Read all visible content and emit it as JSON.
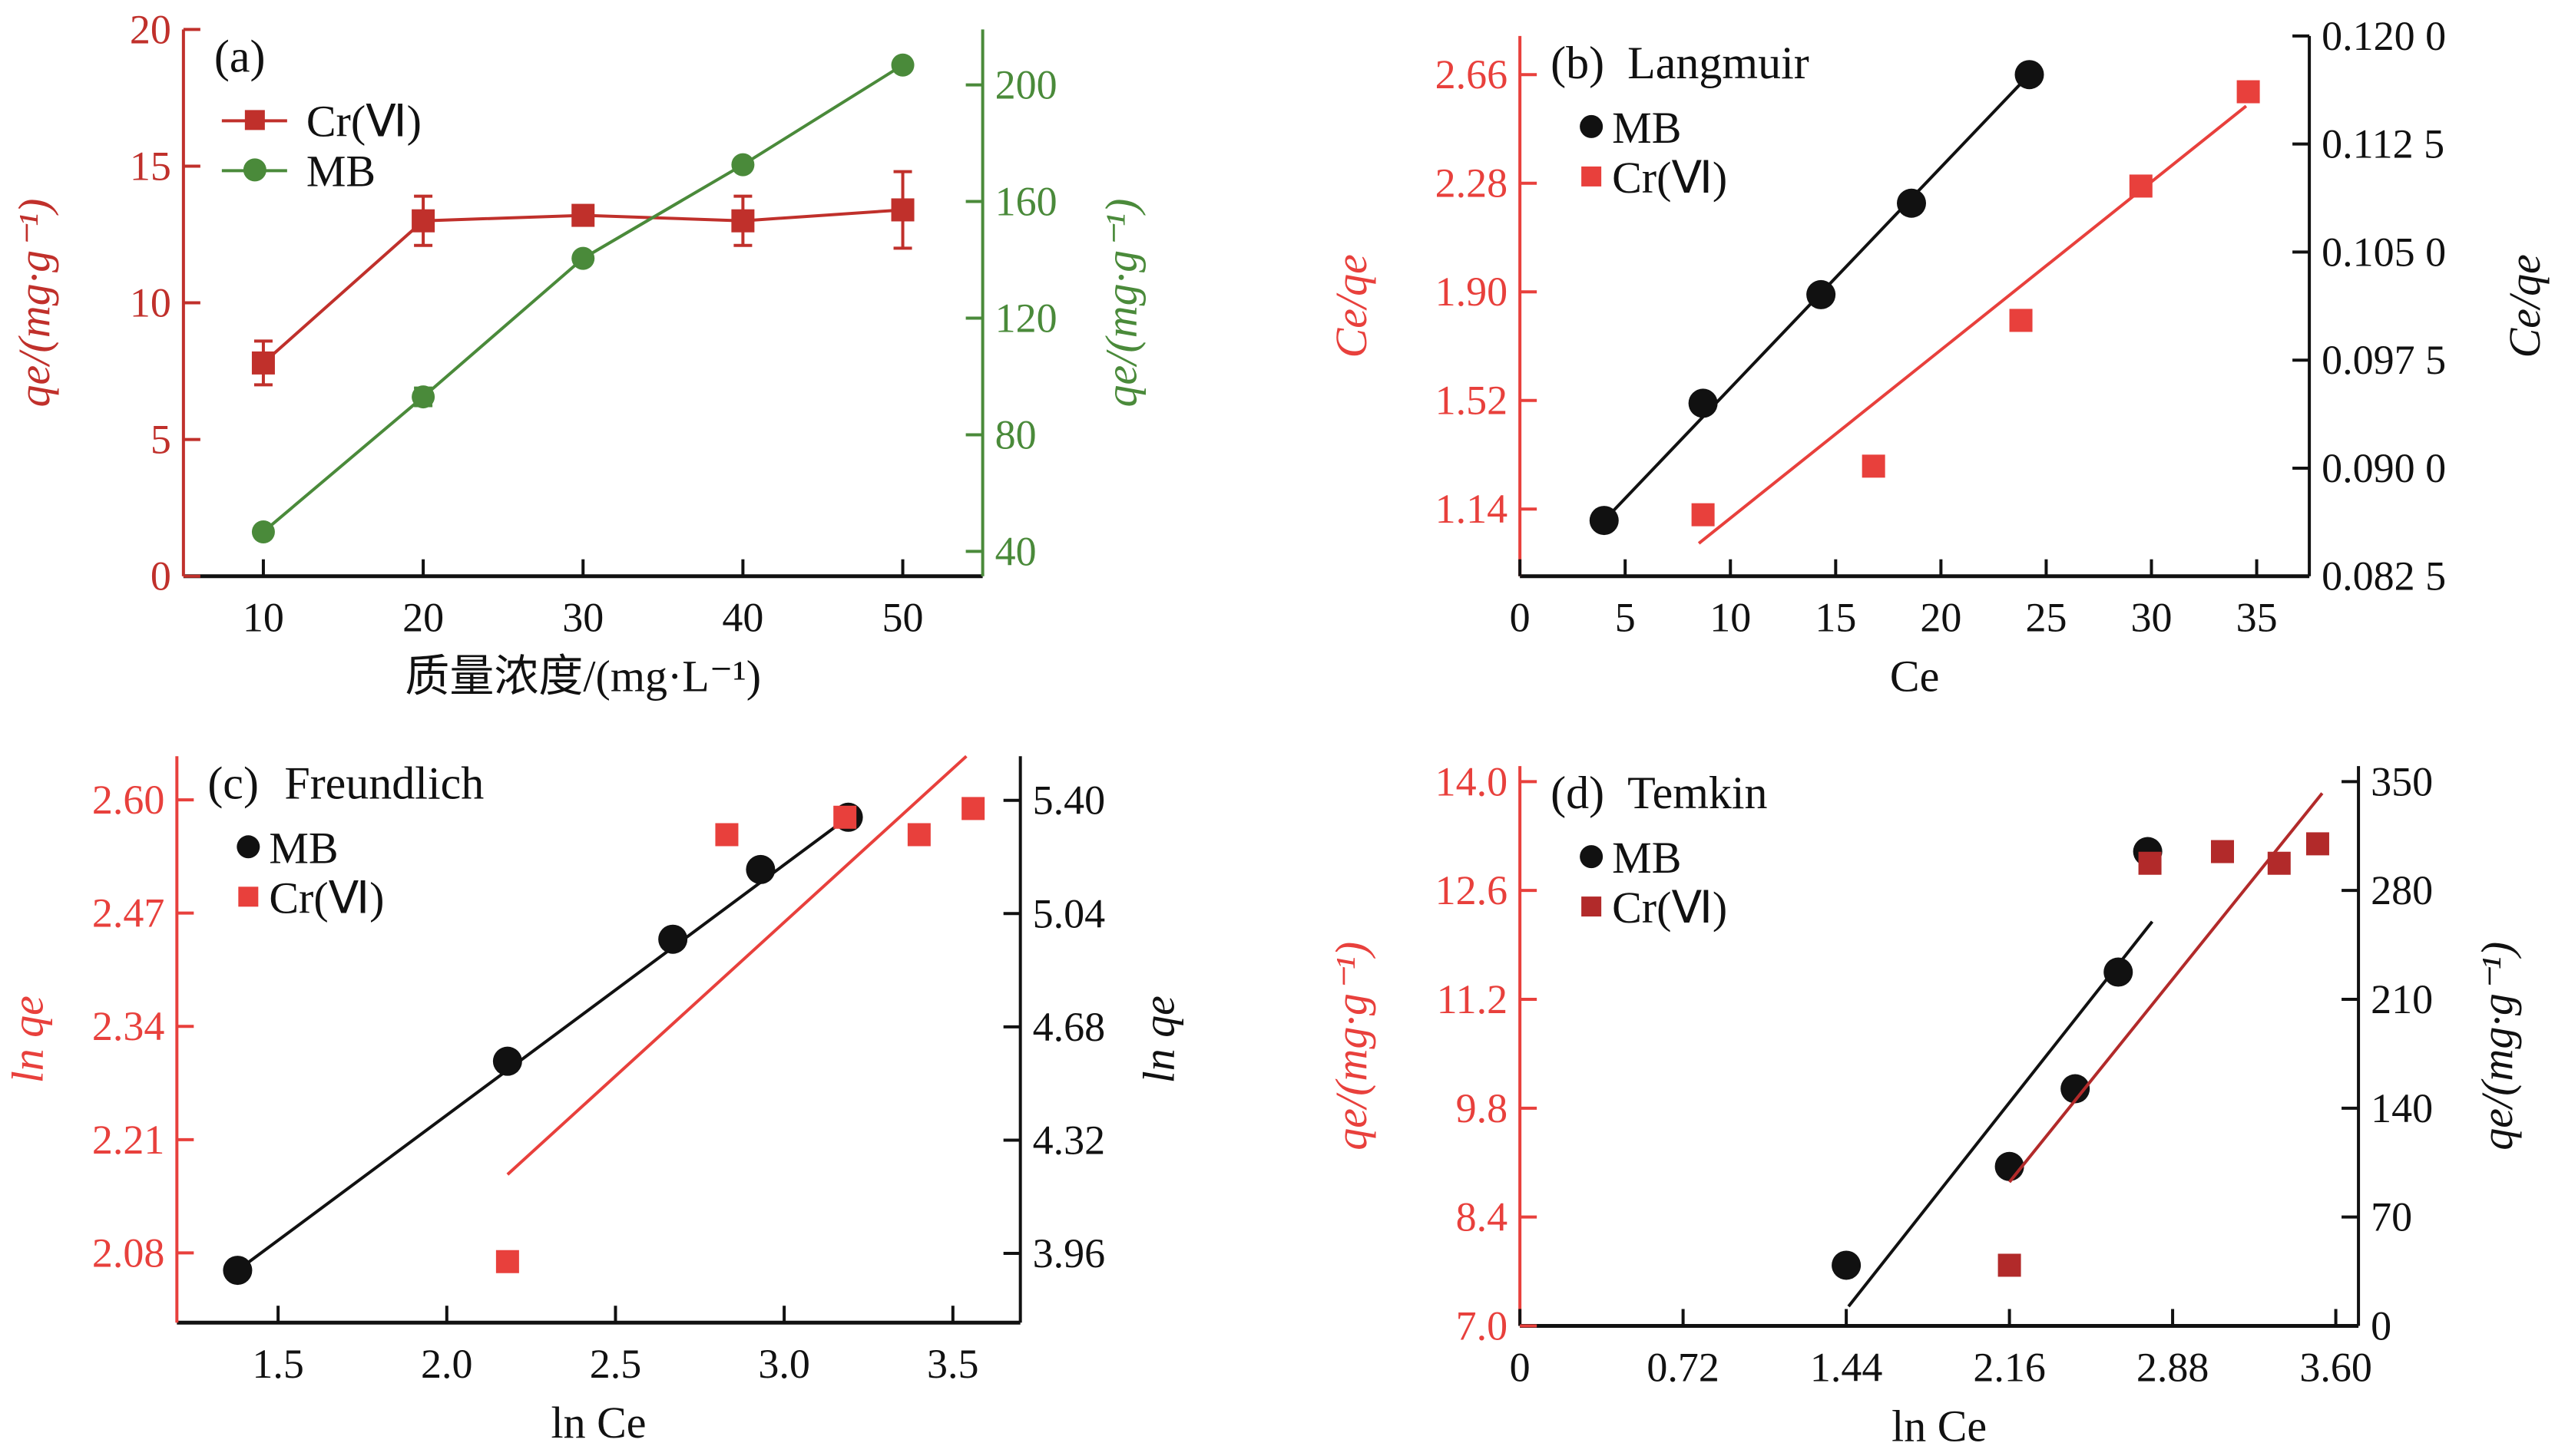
{
  "chart_data": [
    {
      "panel": "a",
      "type": "line",
      "panel_label": "(a)",
      "title": "",
      "xlabel": "质量浓度/(mg·L⁻¹)",
      "ylabel_left": "qe/(mg·g⁻¹)",
      "ylabel_right": "qe/(mg·g⁻¹)",
      "x_ticks": [
        "10",
        "20",
        "30",
        "40",
        "50"
      ],
      "xlim": [
        5,
        55
      ],
      "y_left_ticks": [
        "0",
        "5",
        "10",
        "15",
        "20"
      ],
      "ylim_left": [
        0,
        20
      ],
      "y_right_ticks": [
        "40",
        "80",
        "120",
        "160",
        "200"
      ],
      "ylim_right": [
        31.5,
        219
      ],
      "left_axis_color": "#c0302b",
      "right_axis_color": "#4a8a3a",
      "legend_position": "top-left",
      "series": [
        {
          "name": "Cr(Ⅵ)",
          "axis": "left",
          "marker": "square",
          "color": "#c0302b",
          "x": [
            10,
            20,
            30,
            40,
            50
          ],
          "y": [
            7.8,
            13.0,
            13.2,
            13.0,
            13.4
          ],
          "err": [
            0.8,
            0.9,
            0.3,
            0.9,
            1.4
          ]
        },
        {
          "name": "MB",
          "axis": "right",
          "marker": "circle",
          "color": "#4a8a3a",
          "x": [
            10,
            20,
            30,
            40,
            50
          ],
          "y": [
            46.7,
            93.0,
            140.5,
            172.6,
            206.8
          ],
          "err": [
            0,
            3,
            0,
            0,
            0
          ]
        }
      ]
    },
    {
      "panel": "b",
      "type": "scatter",
      "panel_label": "(b)",
      "title": "Langmuir",
      "xlabel": "Ce",
      "ylabel_left": "Ce/qe",
      "ylabel_right": "Ce/qe",
      "x_ticks": [
        "0",
        "5",
        "10",
        "15",
        "20",
        "25",
        "30",
        "35"
      ],
      "xlim": [
        0,
        37.5
      ],
      "y_left_ticks": [
        "1.14",
        "1.52",
        "1.90",
        "2.28",
        "2.66"
      ],
      "ylim_left": [
        0.905,
        2.795
      ],
      "y_right_ticks": [
        "0.082 5",
        "0.090 0",
        "0.097 5",
        "0.105 0",
        "0.112 5",
        "0.120 0"
      ],
      "ylim_right": [
        0.0825,
        0.12
      ],
      "left_axis_color": "#e8403c",
      "right_axis_color": "#111111",
      "legend_position": "top-left",
      "series": [
        {
          "name": "MB",
          "marker": "circle",
          "color": "#111111",
          "x": [
            4.0,
            8.7,
            14.3,
            18.6,
            24.2
          ],
          "y": [
            1.1,
            1.51,
            1.89,
            2.21,
            2.66
          ],
          "fit": [
            [
              4.0,
              1.1
            ],
            [
              24.2,
              2.66
            ]
          ]
        },
        {
          "name": "Cr(Ⅵ)",
          "marker": "square",
          "color": "#e8403c",
          "x": [
            8.7,
            16.8,
            23.8,
            29.5,
            34.6
          ],
          "y": [
            1.12,
            1.29,
            1.8,
            2.27,
            2.6
          ],
          "fit": [
            [
              8.5,
              1.02
            ],
            [
              34.5,
              2.55
            ]
          ]
        }
      ]
    },
    {
      "panel": "c",
      "type": "scatter",
      "panel_label": "(c)",
      "title": "Freundlich",
      "xlabel": "ln Ce",
      "ylabel_left": "ln qe",
      "ylabel_right": "ln qe",
      "x_ticks": [
        "1.5",
        "2.0",
        "2.5",
        "3.0",
        "3.5"
      ],
      "xlim": [
        1.2,
        3.7
      ],
      "y_left_ticks": [
        "2.08",
        "2.21",
        "2.34",
        "2.47",
        "2.60"
      ],
      "ylim_left": [
        2.0,
        2.65
      ],
      "y_right_ticks": [
        "3.96",
        "4.32",
        "4.68",
        "5.04",
        "5.40"
      ],
      "ylim_right": [
        3.74,
        5.54
      ],
      "left_axis_color": "#e8403c",
      "right_axis_color": "#111111",
      "legend_position": "top-left",
      "series": [
        {
          "name": "MB",
          "marker": "circle",
          "color": "#111111",
          "x": [
            1.38,
            2.18,
            2.67,
            2.93,
            3.19
          ],
          "y": [
            2.06,
            2.3,
            2.44,
            2.52,
            2.58
          ],
          "fit": [
            [
              1.38,
              2.06
            ],
            [
              3.19,
              2.58
            ]
          ]
        },
        {
          "name": "Cr(Ⅵ)",
          "marker": "square",
          "color": "#e8403c",
          "x": [
            2.18,
            2.83,
            3.18,
            3.4,
            3.56
          ],
          "y": [
            2.07,
            2.56,
            2.58,
            2.56,
            2.59
          ],
          "fit": [
            [
              2.18,
              2.17
            ],
            [
              3.54,
              2.65
            ]
          ]
        }
      ]
    },
    {
      "panel": "d",
      "type": "scatter",
      "panel_label": "(d)",
      "title": "Temkin",
      "xlabel": "ln Ce",
      "ylabel_left": "qe/(mg·g⁻¹)",
      "ylabel_right": "qe/(mg·g⁻¹)",
      "x_ticks": [
        "0",
        "0.72",
        "1.44",
        "2.16",
        "2.88",
        "3.60"
      ],
      "xlim": [
        0,
        3.7
      ],
      "y_left_ticks": [
        "7.0",
        "8.4",
        "9.8",
        "11.2",
        "12.6",
        "14.0"
      ],
      "ylim_left": [
        7.0,
        14.2
      ],
      "y_right_ticks": [
        "0",
        "70",
        "140",
        "210",
        "280",
        "350"
      ],
      "ylim_right": [
        0,
        360
      ],
      "left_axis_color": "#e8403c",
      "right_axis_color": "#111111",
      "legend_position": "top-left",
      "series": [
        {
          "name": "MB",
          "marker": "circle",
          "color": "#111111",
          "x": [
            1.44,
            2.16,
            2.45,
            2.64,
            2.77
          ],
          "y": [
            7.78,
            9.05,
            10.05,
            11.55,
            13.1
          ],
          "fit": [
            [
              1.45,
              7.25
            ],
            [
              2.79,
              12.2
            ]
          ]
        },
        {
          "name": "Cr(Ⅵ)",
          "marker": "square",
          "color": "#b22a2a",
          "x": [
            2.16,
            2.78,
            3.1,
            3.35,
            3.52
          ],
          "y": [
            7.78,
            12.95,
            13.1,
            12.95,
            13.2
          ],
          "fit": [
            [
              2.16,
              8.85
            ],
            [
              3.54,
              13.85
            ]
          ]
        }
      ]
    }
  ]
}
